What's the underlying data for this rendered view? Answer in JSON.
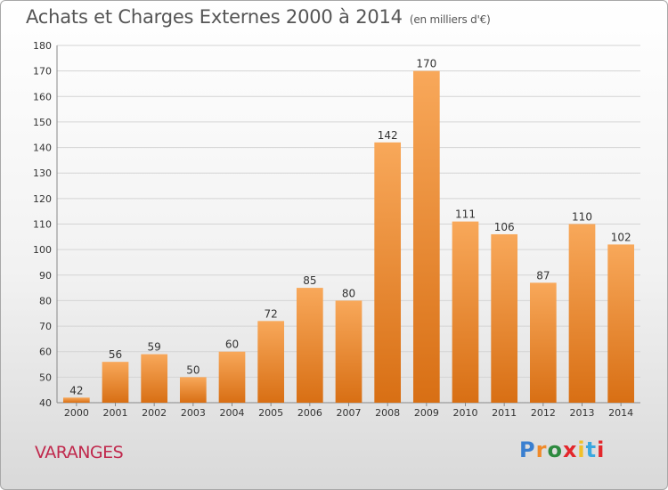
{
  "title": "Achats et Charges Externes 2000 à 2014",
  "subtitle": "(en milliers d'€)",
  "location": "VARANGES",
  "logo": {
    "text": "Proxiti",
    "letter_colors": [
      "#3a7fd0",
      "#f08a2a",
      "#2d8a3f",
      "#e3262b",
      "#f0c02a",
      "#3aa8e0",
      "#e3262b"
    ]
  },
  "colors": {
    "bar_top": "#f8a85a",
    "bar_bottom": "#d86f14",
    "title_text": "#555555",
    "location_text": "#c0284c"
  },
  "chart_data": {
    "type": "bar",
    "title": "Achats et Charges Externes 2000 à 2014",
    "subtitle": "(en milliers d'€)",
    "categories": [
      "2000",
      "2001",
      "2002",
      "2003",
      "2004",
      "2005",
      "2006",
      "2007",
      "2008",
      "2009",
      "2010",
      "2011",
      "2012",
      "2013",
      "2014"
    ],
    "values": [
      42,
      56,
      59,
      50,
      60,
      72,
      85,
      80,
      142,
      170,
      111,
      106,
      87,
      110,
      102
    ],
    "ylim": [
      40,
      180
    ],
    "yticks": [
      40,
      50,
      60,
      70,
      80,
      90,
      100,
      110,
      120,
      130,
      140,
      150,
      160,
      170,
      180
    ],
    "grid": true,
    "data_labels": true
  }
}
